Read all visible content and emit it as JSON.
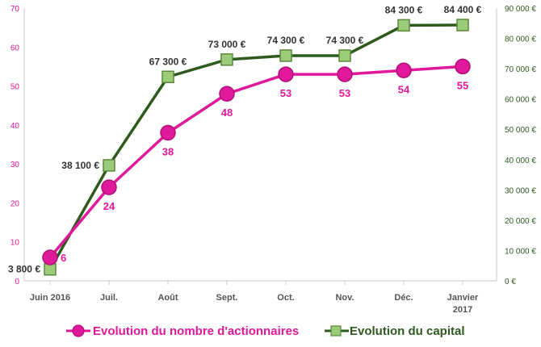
{
  "chart_data": {
    "type": "line",
    "categories": [
      "Juin 2016",
      "Juil.",
      "Août",
      "Sept.",
      "Oct.",
      "Nov.",
      "Déc.",
      "Janvier\n2017"
    ],
    "series": [
      {
        "name": "Evolution du nombre d'actionnaires",
        "axis": "left",
        "color": "#e0189a",
        "marker": "circle",
        "values": [
          6,
          24,
          38,
          48,
          53,
          53,
          54,
          55
        ],
        "labels": [
          "6",
          "24",
          "38",
          "48",
          "53",
          "53",
          "54",
          "55"
        ]
      },
      {
        "name": "Evolution du capital",
        "axis": "right",
        "color": "#2e5a1e",
        "marker": "square",
        "marker_fill": "#9ccc7a",
        "values": [
          3800,
          38100,
          67300,
          73000,
          74300,
          74300,
          84300,
          84400
        ],
        "labels": [
          "3 800 €",
          "38 100 €",
          "67 300 €",
          "73 000 €",
          "74 300 €",
          "74 300 €",
          "84 300 €",
          "84 400 €"
        ]
      }
    ],
    "y_left": {
      "range": [
        0,
        70
      ],
      "ticks": [
        0,
        10,
        20,
        30,
        40,
        50,
        60,
        70
      ],
      "tick_labels": [
        "0",
        "10",
        "20",
        "30",
        "40",
        "50",
        "60",
        "70"
      ],
      "color": "#e0189a"
    },
    "y_right": {
      "range": [
        0,
        90000
      ],
      "ticks": [
        0,
        10000,
        20000,
        30000,
        40000,
        50000,
        60000,
        70000,
        80000,
        90000
      ],
      "tick_labels": [
        "0 €",
        "10 000 €",
        "20 000 €",
        "30 000 €",
        "40 000 €",
        "50 000 €",
        "60 000 €",
        "70 000 €",
        "80 000 €",
        "90 000 €"
      ],
      "color": "#2e5a1e"
    },
    "grid": false,
    "legend_position": "bottom"
  }
}
